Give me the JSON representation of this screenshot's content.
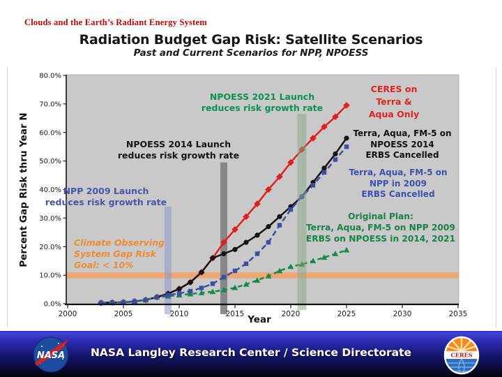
{
  "header": {
    "program_name": "Clouds and the Earth’s Radiant Energy System"
  },
  "title": "Radiation Budget Gap Risk: Satellite Scenarios",
  "subtitle": "Past and Current Scenarios for NPP, NPOESS",
  "chart_data": {
    "type": "line",
    "title": "Radiation Budget Gap Risk: Satellite Scenarios",
    "subtitle": "Past and Current Scenarios for NPP, NPOESS",
    "xlabel": "Year",
    "ylabel": "Percent Gap Risk thru Year N",
    "xlim": [
      2000,
      2035
    ],
    "ylim": [
      0,
      80
    ],
    "x_ticks": [
      2000,
      2005,
      2010,
      2015,
      2020,
      2025,
      2030,
      2035
    ],
    "y_ticks": [
      0,
      10,
      20,
      30,
      40,
      50,
      60,
      70,
      80
    ],
    "y_tick_suffix": ".0%",
    "grid": false,
    "plot_background": "#c9c9c9",
    "goal_band": {
      "value": 10,
      "color": "#f2a269",
      "label": "Climate Observing\nSystem Gap Risk\nGoal: < 10%"
    },
    "event_bars": [
      {
        "name": "npp-2009-launch",
        "year": 2009,
        "top_value": 34,
        "color": "#8a95cc",
        "opacity": 0.55
      },
      {
        "name": "npoess-2014-launch",
        "year": 2014,
        "top_value": 49.5,
        "color": "#7f7f7f",
        "opacity": 0.9
      },
      {
        "name": "npoess-2021-launch",
        "year": 2021,
        "top_value": 66.5,
        "color": "#85a887",
        "opacity": 0.5
      }
    ],
    "x": [
      2003,
      2004,
      2005,
      2006,
      2007,
      2008,
      2009,
      2010,
      2011,
      2012,
      2013,
      2014,
      2015,
      2016,
      2017,
      2018,
      2019,
      2020,
      2021,
      2022,
      2023,
      2024,
      2025
    ],
    "series": [
      {
        "name": "CERES on Terra & Aqua Only",
        "color": "#df1f1f",
        "marker": "diamond",
        "dash": null,
        "values": [
          0.3,
          0.4,
          0.5,
          0.8,
          1.3,
          2.3,
          3.5,
          5.2,
          7.5,
          11,
          16,
          21.5,
          26,
          30.5,
          35,
          40,
          44.5,
          49.5,
          54,
          58,
          62,
          65.5,
          69.5
        ]
      },
      {
        "name": "Terra, Aqua, FM-5 on NPOESS 2014 / ERBS Cancelled",
        "color": "#141414",
        "marker": "circle",
        "dash": null,
        "values": [
          0.3,
          0.4,
          0.5,
          0.8,
          1.3,
          2.3,
          3.5,
          5.2,
          7.5,
          11,
          16,
          17.5,
          19,
          21.5,
          24,
          27,
          30.5,
          34,
          37.5,
          42.5,
          47.5,
          52.5,
          58
        ]
      },
      {
        "name": "Original Plan: Terra, Aqua, FM-5 on NPP 2009, ERBS on NPOESS in 2014, 2021",
        "color": "#168a48",
        "marker": "triangle",
        "dash": "6.5 4.5",
        "values": [
          0.3,
          0.4,
          0.5,
          0.8,
          1.3,
          2.3,
          2.6,
          3,
          3.4,
          3.8,
          4.2,
          4.8,
          5.6,
          6.8,
          8.2,
          9.7,
          11.5,
          13,
          13.8,
          15,
          16.2,
          17.5,
          18.8
        ]
      },
      {
        "name": "Terra, Aqua, FM-5 on NPP in 2009 / ERBS Cancelled",
        "color": "#3c4da8",
        "marker": "square",
        "dash": "8 4.5",
        "values": [
          0.3,
          0.4,
          0.5,
          0.8,
          1.3,
          2.3,
          3,
          3.6,
          4.4,
          5.5,
          7,
          9.3,
          11.5,
          14,
          17.5,
          21.5,
          27.5,
          33,
          37.5,
          41.5,
          46,
          50.5,
          55
        ]
      }
    ]
  },
  "annotations": {
    "npoess2021": "NPOESS 2021 Launch\nreduces risk growth rate",
    "npoess2014": "NPOESS 2014 Launch\nreduces risk growth rate",
    "npp2009": "NPP 2009 Launch\nreduces risk growth rate",
    "goal": "Climate Observing\nSystem Gap Risk\nGoal: < 10%",
    "ceres_red": "CERES on\nTerra &\nAqua Only",
    "terra_npoess": "Terra, Aqua, FM-5 on\nNPOESS 2014\nERBS Cancelled",
    "terra_npp": "Terra, Aqua, FM-5 on\nNPP in 2009\nERBS Cancelled",
    "original_plan": "Original Plan:\nTerra, Aqua, FM-5 on NPP 2009\nERBS on NPOESS in 2014, 2021"
  },
  "footer": {
    "text": "NASA Langley Research Center / Science Directorate",
    "nasa_logo_text": "NASA",
    "ceres_logo_text": "CERES"
  }
}
